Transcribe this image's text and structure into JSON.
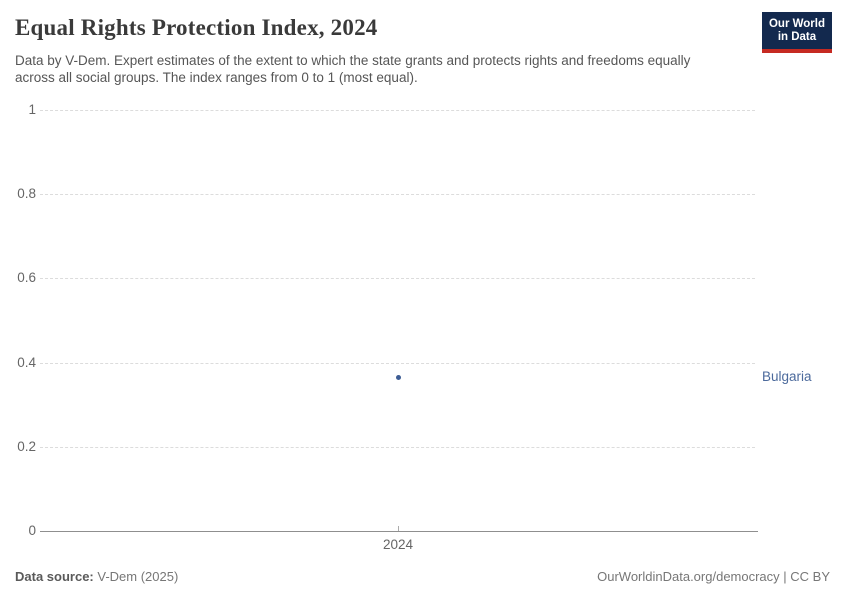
{
  "header": {
    "title": "Equal Rights Protection Index, 2024",
    "subtitle": "Data by V-Dem. Expert estimates of the extent to which the state grants and protects rights and freedoms equally across all social groups. The index ranges from 0 to 1 (most equal)."
  },
  "logo": {
    "line1": "Our World",
    "line2": "in Data"
  },
  "chart_data": {
    "type": "scatter",
    "title": "Equal Rights Protection Index, 2024",
    "x": [
      2024
    ],
    "series": [
      {
        "name": "Bulgaria",
        "values": [
          0.365
        ]
      }
    ],
    "xlabel": "",
    "ylabel": "",
    "ylim": [
      0,
      1
    ],
    "yticks": [
      0,
      0.2,
      0.4,
      0.6,
      0.8,
      1
    ],
    "xticks": [
      "2024"
    ],
    "grid": "horizontal-dashed",
    "legend_position": "entity-label-right-of-point"
  },
  "colors": {
    "point": "#3d5c94",
    "entity_label": "#4c6a9c",
    "gridline": "#dcdcdc",
    "axis": "#8f8f8f",
    "tick_text": "#666666",
    "title_text": "#3a3a3a",
    "subtitle_text": "#565656",
    "logo_bg": "#13294e",
    "logo_bar": "#c62a22"
  },
  "footer": {
    "source_label": "Data source:",
    "source_value": "V-Dem (2025)",
    "right_text": "OurWorldinData.org/democracy | CC BY"
  }
}
